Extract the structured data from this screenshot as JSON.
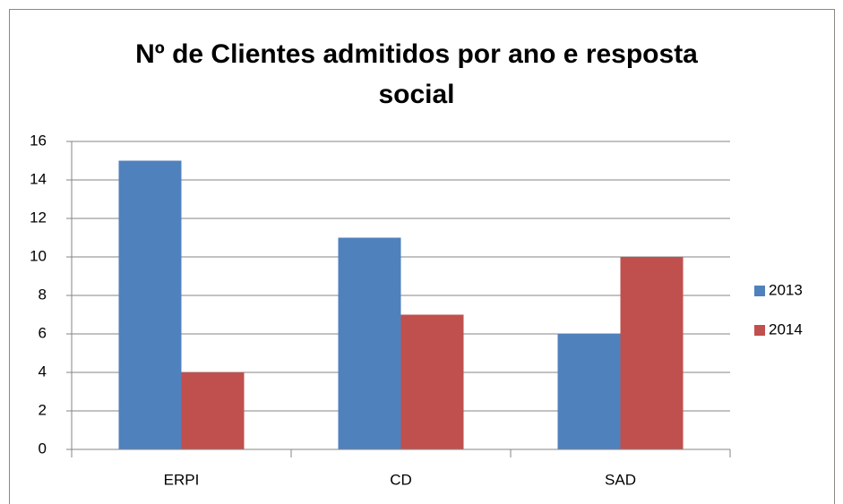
{
  "chart_data": {
    "type": "bar",
    "title": "Nº de Clientes admitidos por ano e resposta social",
    "categories": [
      "ERPI",
      "CD",
      "SAD"
    ],
    "series": [
      {
        "name": "2013",
        "color": "#4f81bd",
        "values": [
          15,
          11,
          6
        ]
      },
      {
        "name": "2014",
        "color": "#c0504d",
        "values": [
          4,
          7,
          10
        ]
      }
    ],
    "ylim": [
      0,
      16
    ],
    "yticks": [
      0,
      2,
      4,
      6,
      8,
      10,
      12,
      14,
      16
    ],
    "grid": true,
    "legend": "right"
  }
}
